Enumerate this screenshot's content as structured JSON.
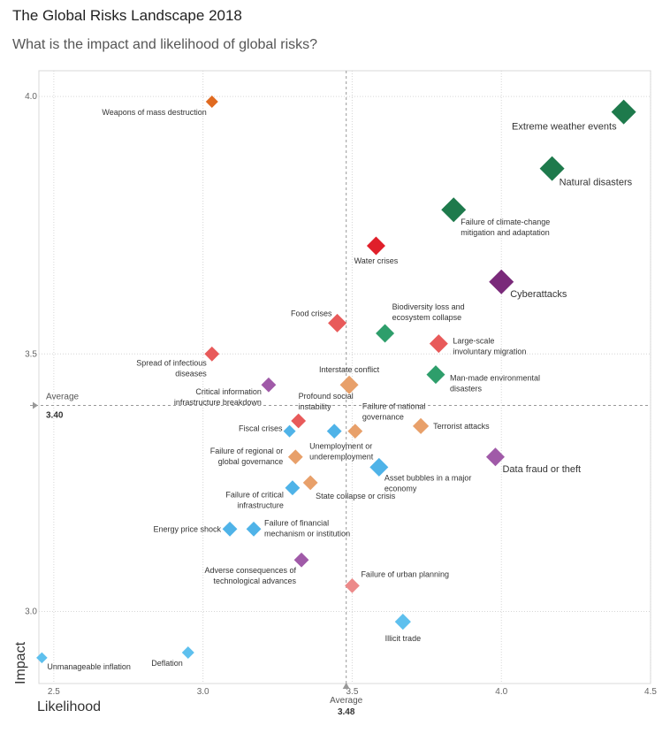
{
  "title": "The Global Risks Landscape 2018",
  "subtitle": "What is the impact and likelihood of global risks?",
  "chart_data": {
    "type": "scatter",
    "xlabel": "Likelihood",
    "ylabel": "Impact",
    "xlim": [
      2.45,
      4.5
    ],
    "ylim": [
      2.86,
      4.05
    ],
    "x_ticks": [
      "2.5",
      "3.0",
      "3.5",
      "4.0",
      "4.5"
    ],
    "y_ticks": [
      "3.0",
      "3.5",
      "4.0"
    ],
    "grid": true,
    "average": {
      "x_label": "Average",
      "x_value": "3.48",
      "y_label": "Average",
      "y_value": "3.40"
    },
    "colors": {
      "economic": "#4fb3e8",
      "environmental": "#2e9e6b",
      "environmental_dark": "#1e7a4c",
      "geopolitical": "#e8a06a",
      "geopolitical_dark": "#e06a20",
      "societal": "#e85a5a",
      "societal_dark": "#e01f2a",
      "technological": "#a05aa8",
      "technological_dark": "#7a2a7a"
    },
    "points": [
      {
        "label": "Weapons of mass destruction",
        "x": 3.03,
        "y": 3.99,
        "color": "#e06a20",
        "size": 1,
        "anchor": "end",
        "dx": -6,
        "dy": 15
      },
      {
        "label": "Extreme weather events",
        "x": 4.41,
        "y": 3.97,
        "color": "#1e7a4c",
        "size": 2,
        "anchor": "end",
        "dx": -8,
        "dy": 20
      },
      {
        "label": "Natural disasters",
        "x": 4.17,
        "y": 3.86,
        "color": "#1e7a4c",
        "size": 2,
        "anchor": "start",
        "dx": 8,
        "dy": 19
      },
      {
        "label": "Failure of climate-change mitigation and adaptation",
        "lines": [
          "Failure of climate-change",
          "mitigation and adaptation"
        ],
        "x": 3.84,
        "y": 3.78,
        "color": "#1e7a4c",
        "size": 2,
        "anchor": "start",
        "dx": 8,
        "dy": 17
      },
      {
        "label": "Water crises",
        "x": 3.58,
        "y": 3.71,
        "color": "#e01f2a",
        "size": 1.5,
        "anchor": "middle",
        "dx": 0,
        "dy": 20
      },
      {
        "label": "Cyberattacks",
        "x": 4.0,
        "y": 3.64,
        "color": "#7a2a7a",
        "size": 2,
        "anchor": "start",
        "dx": 10,
        "dy": 17
      },
      {
        "label": "Food crises",
        "x": 3.45,
        "y": 3.56,
        "color": "#e85a5a",
        "size": 1.5,
        "anchor": "end",
        "dx": -6,
        "dy": -8
      },
      {
        "label": "Biodiversity loss and ecosystem collapse",
        "lines": [
          "Biodiversity loss and",
          "ecosystem collapse"
        ],
        "x": 3.61,
        "y": 3.54,
        "color": "#2e9e6b",
        "size": 1.5,
        "anchor": "start",
        "dx": 8,
        "dy": -27
      },
      {
        "label": "Large-scale involuntary migration",
        "lines": [
          "Large-scale",
          "involuntary migration"
        ],
        "x": 3.79,
        "y": 3.52,
        "color": "#e85a5a",
        "size": 1.5,
        "anchor": "start",
        "dx": 16,
        "dy": 0
      },
      {
        "label": "Spread of infectious diseases",
        "lines": [
          "Spread of infectious",
          "diseases"
        ],
        "x": 3.03,
        "y": 3.5,
        "color": "#e85a5a",
        "size": 1.2,
        "anchor": "end",
        "dx": -6,
        "dy": 13
      },
      {
        "label": "Interstate conflict",
        "x": 3.49,
        "y": 3.44,
        "color": "#e8a06a",
        "size": 1.5,
        "anchor": "middle",
        "dx": 0,
        "dy": -14
      },
      {
        "label": "Man-made environmental disasters",
        "lines": [
          "Man-made environmental",
          "disasters"
        ],
        "x": 3.78,
        "y": 3.46,
        "color": "#2e9e6b",
        "size": 1.5,
        "anchor": "start",
        "dx": 16,
        "dy": 7
      },
      {
        "label": "Critical information infrastructure breakdown",
        "lines": [
          "Critical information",
          "infrastructure breakdown"
        ],
        "x": 3.22,
        "y": 3.44,
        "color": "#a05aa8",
        "size": 1.2,
        "anchor": "end",
        "dx": -8,
        "dy": 11
      },
      {
        "label": "Profound social instability",
        "lines": [
          "Profound social",
          "instability"
        ],
        "x": 3.32,
        "y": 3.37,
        "color": "#e85a5a",
        "size": 1.2,
        "anchor": "start",
        "dx": 0,
        "dy": -25
      },
      {
        "label": "Fiscal crises",
        "x": 3.29,
        "y": 3.35,
        "color": "#4fb3e8",
        "size": 1,
        "anchor": "end",
        "dx": -8,
        "dy": 0
      },
      {
        "label": "Failure of national governance",
        "lines": [
          "Failure of national",
          "governance"
        ],
        "x": 3.51,
        "y": 3.35,
        "color": "#e8a06a",
        "size": 1.2,
        "anchor": "start",
        "dx": 8,
        "dy": -25
      },
      {
        "label": "Unemployment or underemployment",
        "lines": [
          "Unemployment or",
          "underemployment"
        ],
        "x": 3.44,
        "y": 3.35,
        "color": "#4fb3e8",
        "size": 1.2,
        "anchor": "start",
        "dx": -28,
        "dy": 20
      },
      {
        "label": "Terrorist attacks",
        "x": 3.73,
        "y": 3.36,
        "color": "#e8a06a",
        "size": 1.3,
        "anchor": "start",
        "dx": 14,
        "dy": 3
      },
      {
        "label": "Failure of regional or global governance",
        "lines": [
          "Failure of regional or",
          "global governance"
        ],
        "x": 3.31,
        "y": 3.3,
        "color": "#e8a06a",
        "size": 1.2,
        "anchor": "end",
        "dx": -14,
        "dy": -4
      },
      {
        "label": "Data fraud or theft",
        "x": 3.98,
        "y": 3.3,
        "color": "#a05aa8",
        "size": 1.5,
        "anchor": "start",
        "dx": 8,
        "dy": 17
      },
      {
        "label": "Asset bubbles in a major economy",
        "lines": [
          "Asset bubbles in a major",
          "economy"
        ],
        "x": 3.59,
        "y": 3.28,
        "color": "#4fb3e8",
        "size": 1.5,
        "anchor": "start",
        "dx": 6,
        "dy": 15
      },
      {
        "label": "Failure of critical infrastructure",
        "lines": [
          "Failure of critical",
          "infrastructure"
        ],
        "x": 3.3,
        "y": 3.24,
        "color": "#4fb3e8",
        "size": 1.2,
        "anchor": "end",
        "dx": -10,
        "dy": 11
      },
      {
        "label": "State collapse or crisis",
        "x": 3.36,
        "y": 3.25,
        "color": "#e8a06a",
        "size": 1.2,
        "anchor": "start",
        "dx": 6,
        "dy": 18
      },
      {
        "label": "Energy price shock",
        "x": 3.09,
        "y": 3.16,
        "color": "#4fb3e8",
        "size": 1.2,
        "anchor": "end",
        "dx": -10,
        "dy": 3
      },
      {
        "label": "Failure of financial mechanism or institution",
        "lines": [
          "Failure of financial",
          "mechanism or institution"
        ],
        "x": 3.17,
        "y": 3.16,
        "color": "#4fb3e8",
        "size": 1.2,
        "anchor": "start",
        "dx": 12,
        "dy": -4
      },
      {
        "label": "Adverse consequences of technological advances",
        "lines": [
          "Adverse consequences of",
          "technological advances"
        ],
        "x": 3.33,
        "y": 3.1,
        "color": "#a05aa8",
        "size": 1.2,
        "anchor": "end",
        "dx": -6,
        "dy": 15
      },
      {
        "label": "Failure of urban planning",
        "x": 3.5,
        "y": 3.05,
        "color": "#ec8a8a",
        "size": 1.2,
        "anchor": "start",
        "dx": 10,
        "dy": -10
      },
      {
        "label": "Illicit trade",
        "x": 3.67,
        "y": 2.98,
        "color": "#5ec0ee",
        "size": 1.3,
        "anchor": "middle",
        "dx": 0,
        "dy": 22
      },
      {
        "label": "Deflation",
        "x": 2.95,
        "y": 2.92,
        "color": "#5ec0ee",
        "size": 1,
        "anchor": "end",
        "dx": -6,
        "dy": 15
      },
      {
        "label": "Unmanageable inflation",
        "x": 2.46,
        "y": 2.91,
        "color": "#5ec0ee",
        "size": 0.9,
        "anchor": "start",
        "dx": 6,
        "dy": 13
      }
    ]
  }
}
